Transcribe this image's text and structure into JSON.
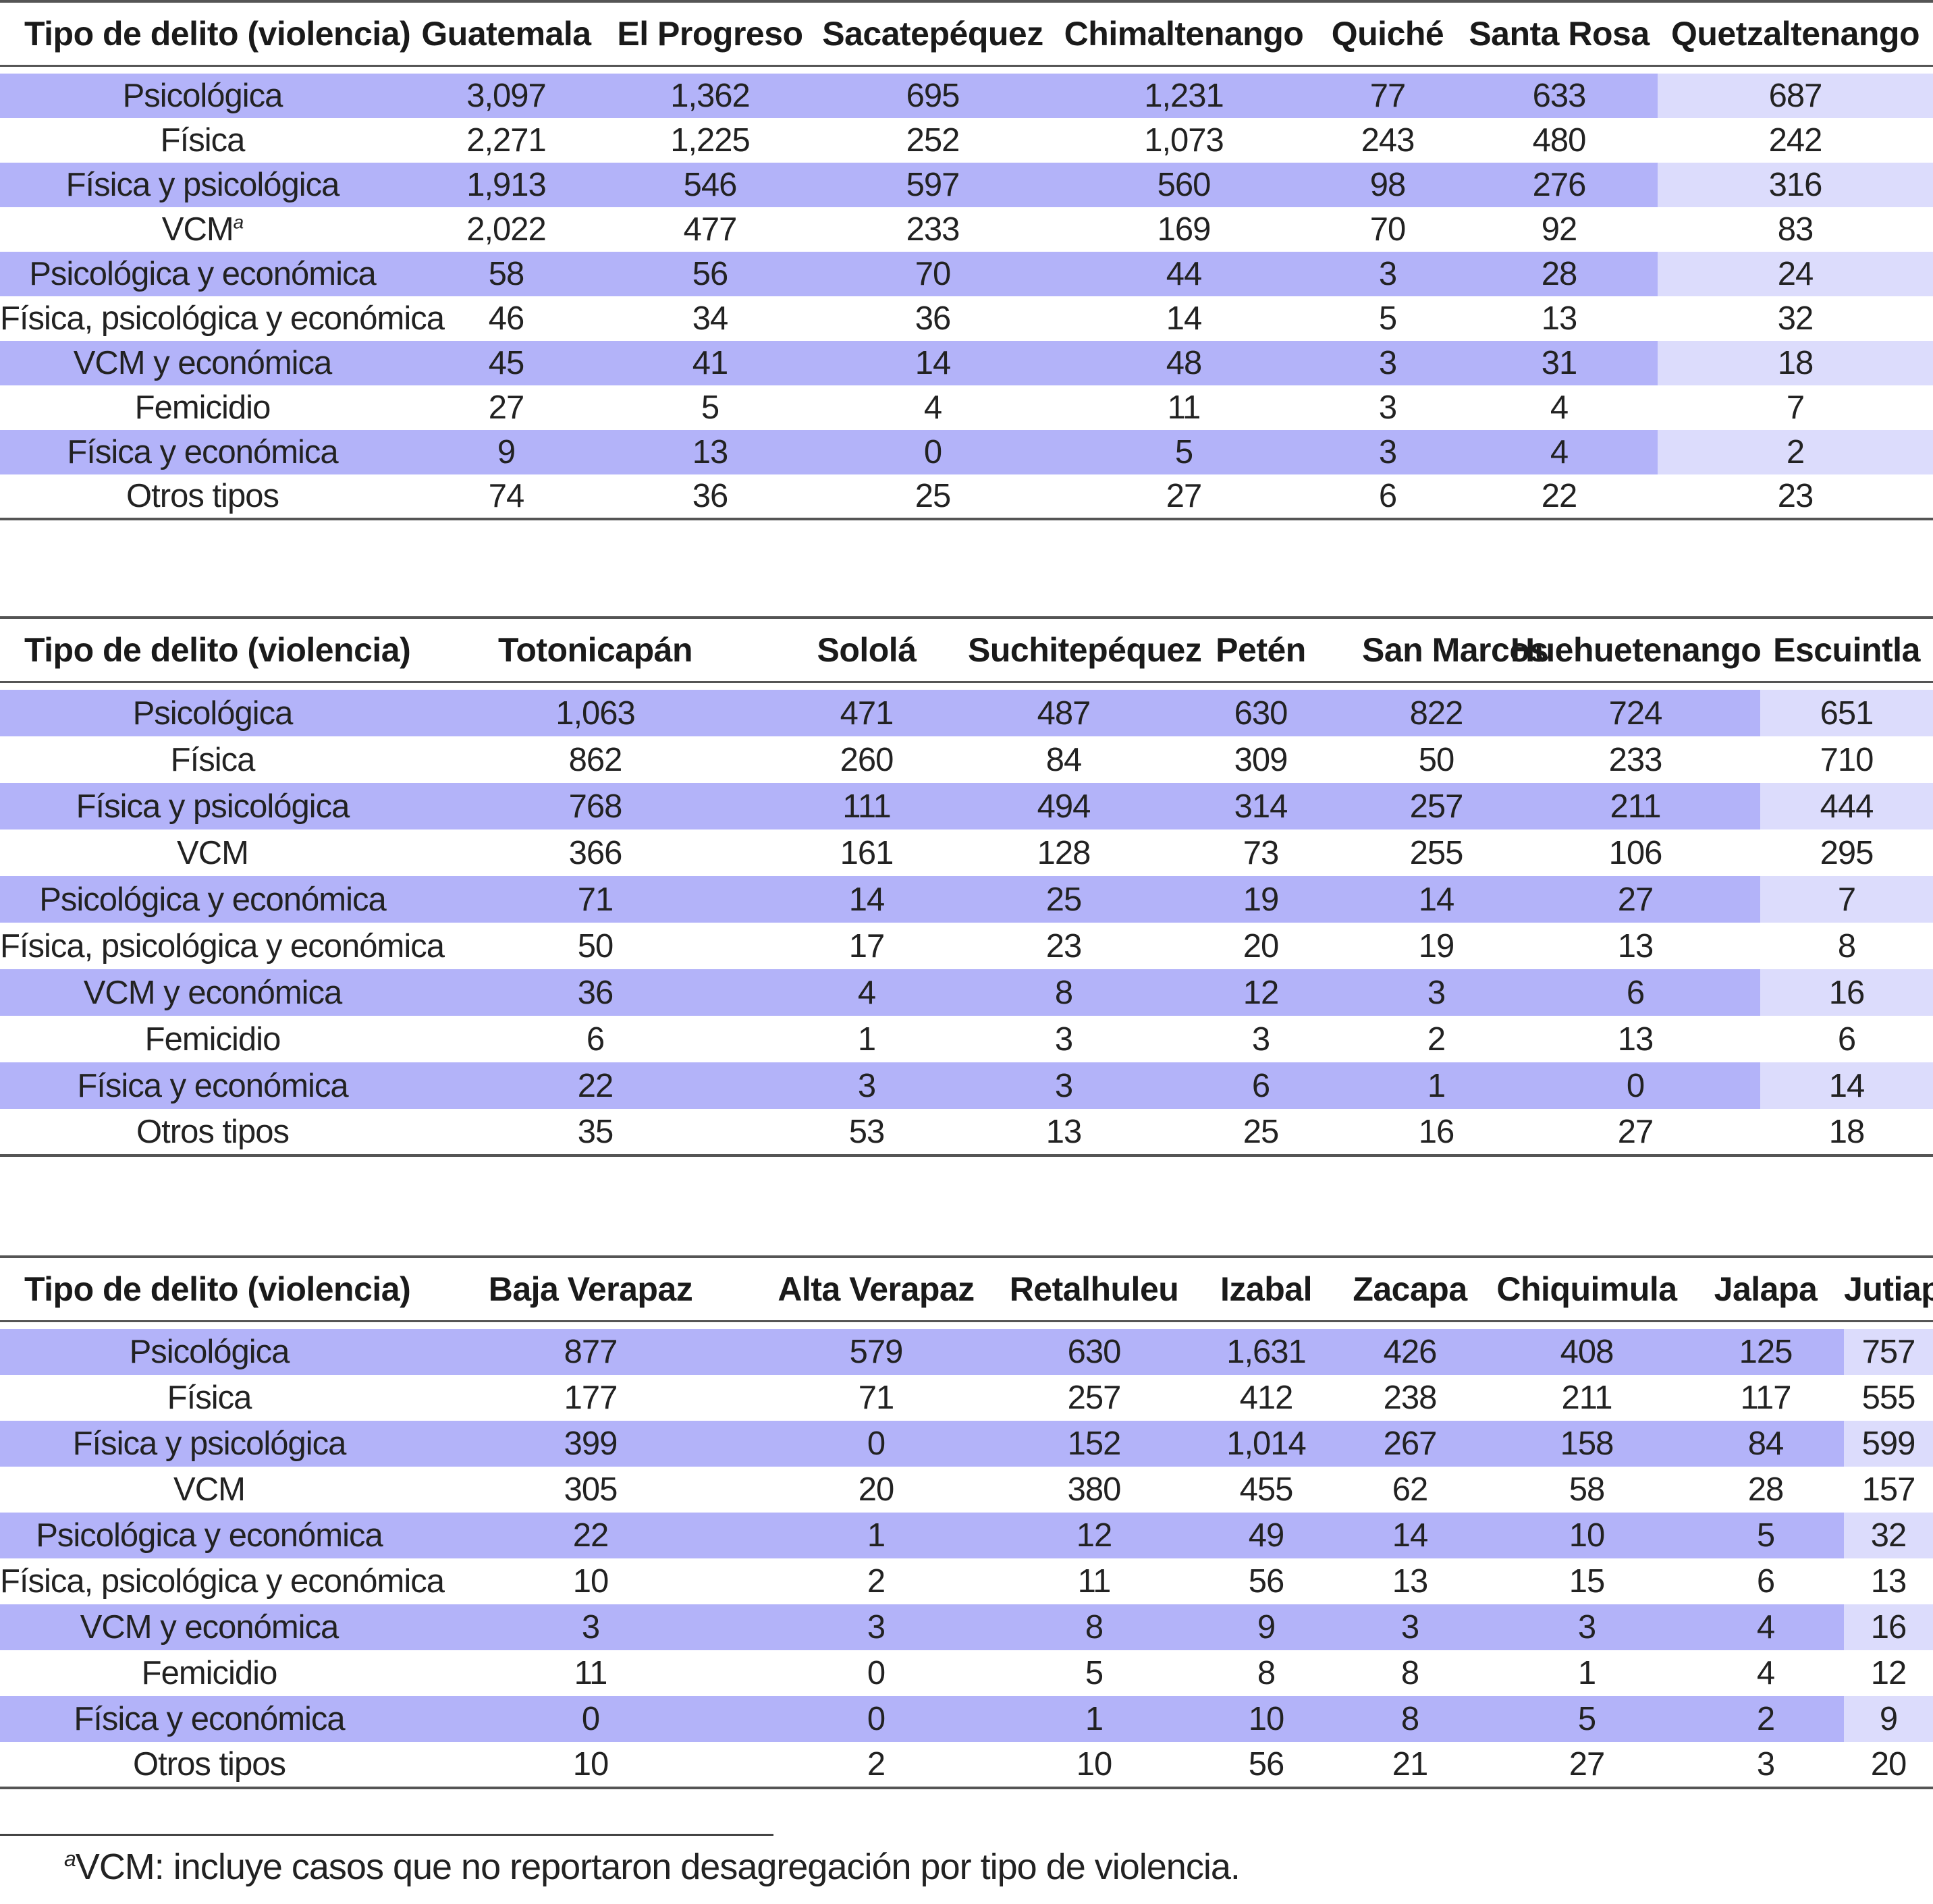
{
  "tables": [
    {
      "header": [
        "Tipo de delito (violencia)",
        "Guatemala",
        "El Progreso",
        "Sacatepéquez",
        "Chimaltenango",
        "Quiché",
        "Santa Rosa",
        "Quetzaltenango"
      ],
      "rows": [
        [
          "Psicológica",
          "3,097",
          "1,362",
          "695",
          "1,231",
          "77",
          "633",
          "687"
        ],
        [
          "Física",
          "2,271",
          "1,225",
          "252",
          "1,073",
          "243",
          "480",
          "242"
        ],
        [
          "Física y psicológica",
          "1,913",
          "546",
          "597",
          "560",
          "98",
          "276",
          "316"
        ],
        [
          "VCM",
          "2,022",
          "477",
          "233",
          "169",
          "70",
          "92",
          "83"
        ],
        [
          "Psicológica y económica",
          "58",
          "56",
          "70",
          "44",
          "3",
          "28",
          "24"
        ],
        [
          "Física, psicológica y económica",
          "46",
          "34",
          "36",
          "14",
          "5",
          "13",
          "32"
        ],
        [
          "VCM y económica",
          "45",
          "41",
          "14",
          "48",
          "3",
          "31",
          "18"
        ],
        [
          "Femicidio",
          "27",
          "5",
          "4",
          "11",
          "3",
          "4",
          "7"
        ],
        [
          "Física y económica",
          "9",
          "13",
          "0",
          "5",
          "3",
          "4",
          "2"
        ],
        [
          "Otros tipos",
          "74",
          "36",
          "25",
          "27",
          "6",
          "22",
          "23"
        ]
      ]
    },
    {
      "header": [
        "Tipo de delito (violencia)",
        "Totonicapán",
        "Sololá",
        "Suchitepéquez",
        "Petén",
        "San Marcos",
        "Huehuetenango",
        "Escuintla"
      ],
      "rows": [
        [
          "Psicológica",
          "1,063",
          "471",
          "487",
          "630",
          "822",
          "724",
          "651"
        ],
        [
          "Física",
          "862",
          "260",
          "84",
          "309",
          "50",
          "233",
          "710"
        ],
        [
          "Física y psicológica",
          "768",
          "111",
          "494",
          "314",
          "257",
          "211",
          "444"
        ],
        [
          "VCM",
          "366",
          "161",
          "128",
          "73",
          "255",
          "106",
          "295"
        ],
        [
          "Psicológica y económica",
          "71",
          "14",
          "25",
          "19",
          "14",
          "27",
          "7"
        ],
        [
          "Física, psicológica y económica",
          "50",
          "17",
          "23",
          "20",
          "19",
          "13",
          "8"
        ],
        [
          "VCM y económica",
          "36",
          "4",
          "8",
          "12",
          "3",
          "6",
          "16"
        ],
        [
          "Femicidio",
          "6",
          "1",
          "3",
          "3",
          "2",
          "13",
          "6"
        ],
        [
          "Física y económica",
          "22",
          "3",
          "3",
          "6",
          "1",
          "0",
          "14"
        ],
        [
          "Otros tipos",
          "35",
          "53",
          "13",
          "25",
          "16",
          "27",
          "18"
        ]
      ]
    },
    {
      "header": [
        "Tipo de delito (violencia)",
        "Baja Verapaz",
        "Alta Verapaz",
        "Retalhuleu",
        "Izabal",
        "Zacapa",
        "Chiquimula",
        "Jalapa",
        "Jutiapa"
      ],
      "rows": [
        [
          "Psicológica",
          "877",
          "579",
          "630",
          "1,631",
          "426",
          "408",
          "125",
          "757"
        ],
        [
          "Física",
          "177",
          "71",
          "257",
          "412",
          "238",
          "211",
          "117",
          "555"
        ],
        [
          "Física y psicológica",
          "399",
          "0",
          "152",
          "1,014",
          "267",
          "158",
          "84",
          "599"
        ],
        [
          "VCM",
          "305",
          "20",
          "380",
          "455",
          "62",
          "58",
          "28",
          "157"
        ],
        [
          "Psicológica y económica",
          "22",
          "1",
          "12",
          "49",
          "14",
          "10",
          "5",
          "32"
        ],
        [
          "Física, psicológica y económica",
          "10",
          "2",
          "11",
          "56",
          "13",
          "15",
          "6",
          "13"
        ],
        [
          "VCM y económica",
          "3",
          "3",
          "8",
          "9",
          "3",
          "3",
          "4",
          "16"
        ],
        [
          "Femicidio",
          "11",
          "0",
          "5",
          "8",
          "8",
          "1",
          "4",
          "12"
        ],
        [
          "Física y económica",
          "0",
          "0",
          "1",
          "10",
          "8",
          "5",
          "2",
          "9"
        ],
        [
          "Otros tipos",
          "10",
          "2",
          "10",
          "56",
          "21",
          "27",
          "3",
          "20"
        ]
      ]
    }
  ],
  "footnote_marker": "a",
  "footnote": "VCM: incluye casos que no reportaron desagregación por tipo de violencia.",
  "colors": {
    "shade": "#b3b3f9",
    "shade_last_col": "#dcdcfc",
    "rule": "#555555"
  }
}
